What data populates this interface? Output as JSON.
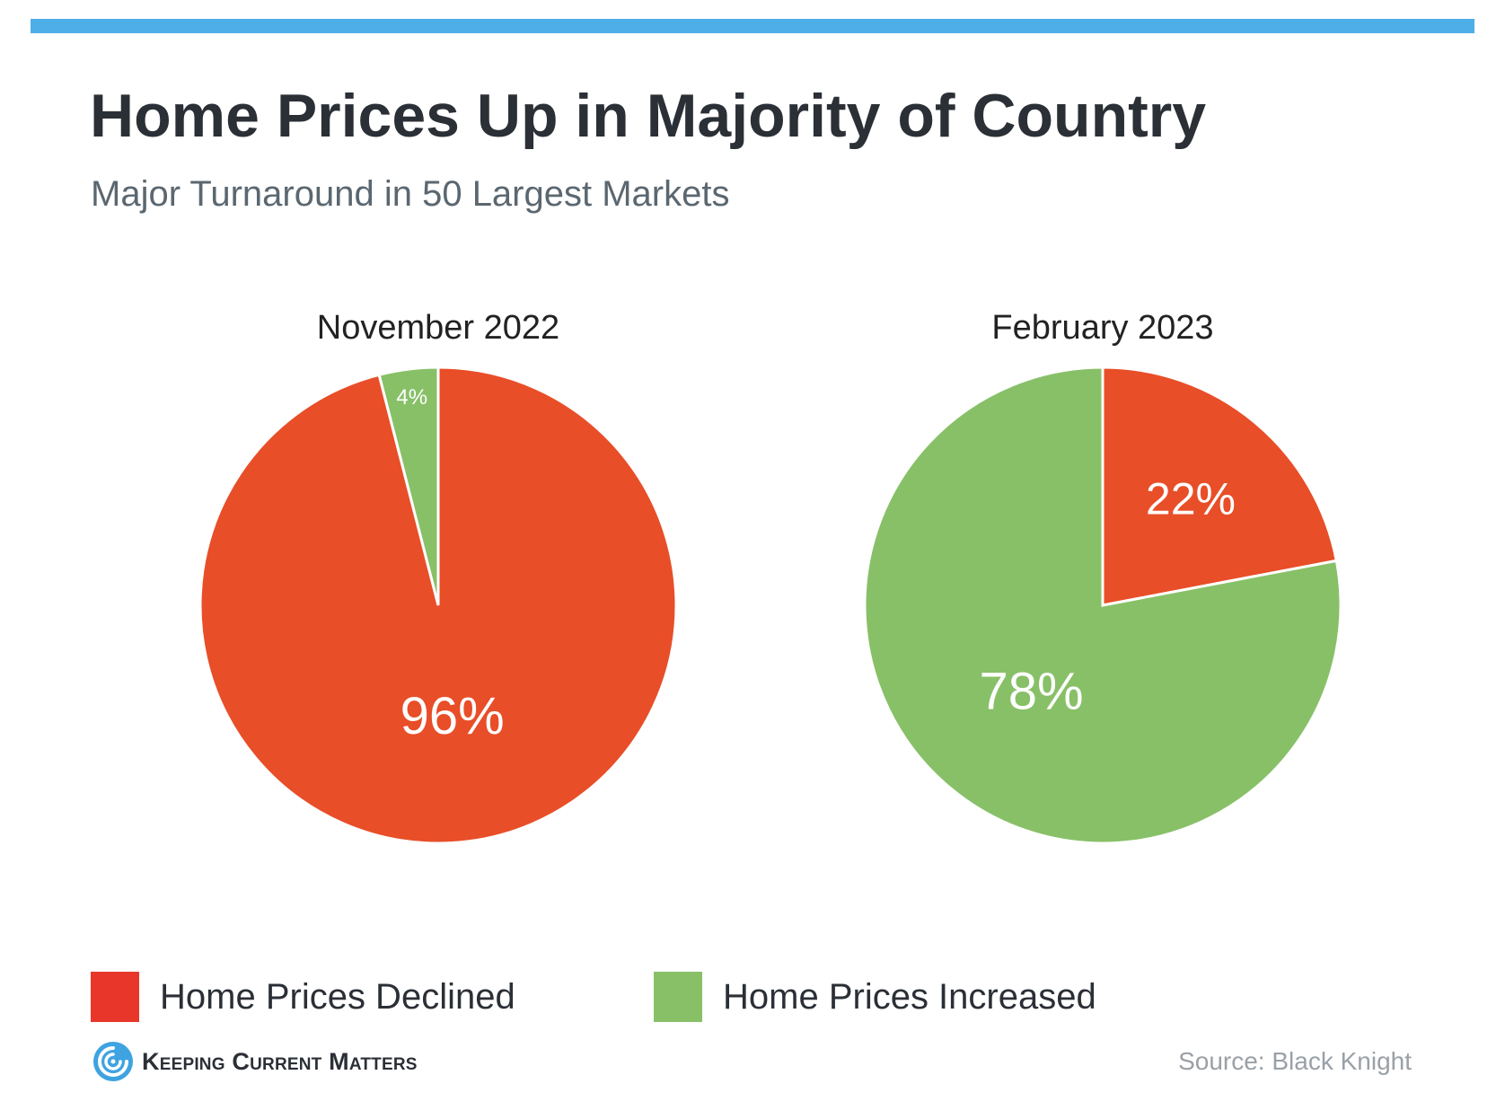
{
  "header": {
    "title": "Home Prices Up in Majority of Country",
    "subtitle": "Major Turnaround in 50 Largest Markets"
  },
  "colors": {
    "accent_bar": "#4daee8",
    "declined": "#e84e28",
    "increased": "#88c068",
    "legend_declined": "#e8372a",
    "legend_increased": "#88c068"
  },
  "legend": {
    "declined_label": "Home Prices Declined",
    "increased_label": "Home Prices Increased"
  },
  "chart_data": [
    {
      "type": "pie",
      "title": "November 2022",
      "slices": [
        {
          "name": "Home Prices Increased",
          "value": 4,
          "label": "4%",
          "color": "#88c068"
        },
        {
          "name": "Home Prices Declined",
          "value": 96,
          "label": "96%",
          "color": "#e84e28"
        }
      ]
    },
    {
      "type": "pie",
      "title": "February 2023",
      "slices": [
        {
          "name": "Home Prices Declined",
          "value": 22,
          "label": "22%",
          "color": "#e84e28"
        },
        {
          "name": "Home Prices Increased",
          "value": 78,
          "label": "78%",
          "color": "#88c068"
        }
      ]
    }
  ],
  "footer": {
    "logo_text": "Keeping Current Matters",
    "logo_icon": "spiral-logo-icon",
    "source": "Source: Black Knight"
  }
}
